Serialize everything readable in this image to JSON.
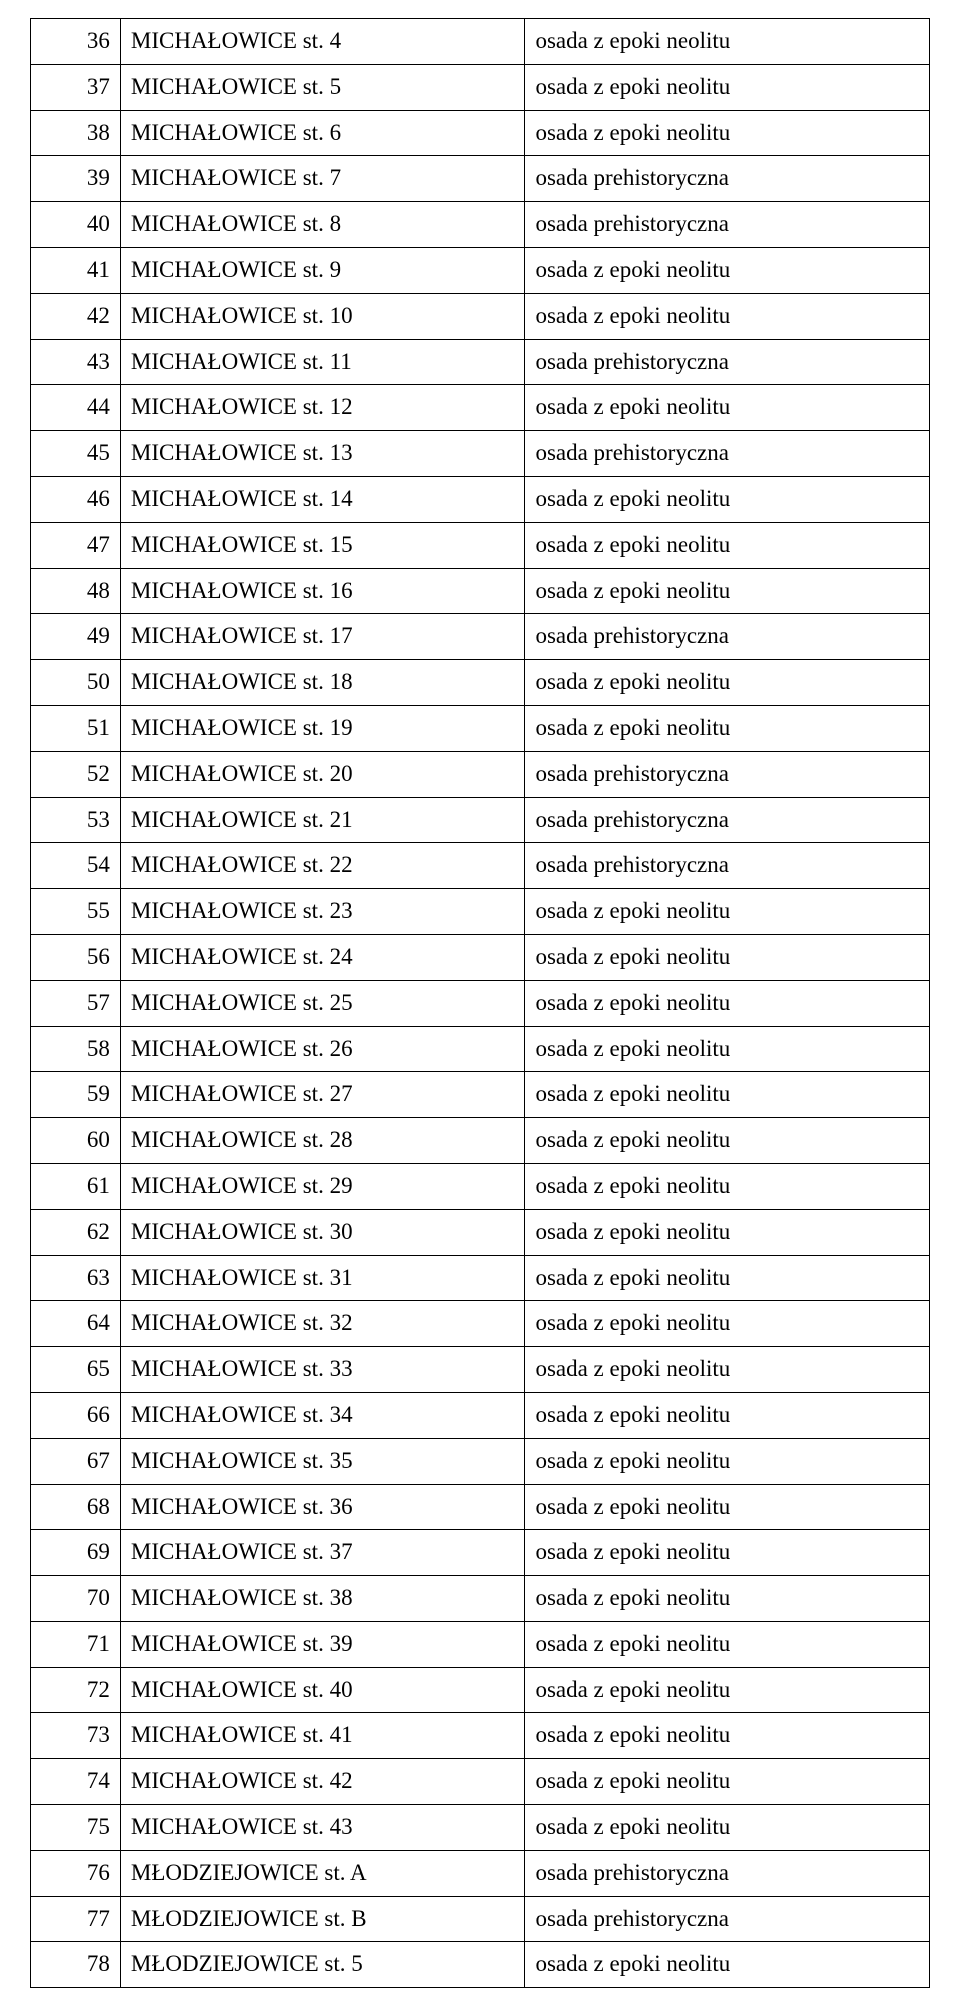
{
  "table": {
    "columns": [
      "num",
      "name",
      "desc"
    ],
    "col_widths_pct": [
      10,
      45,
      45
    ],
    "border_color": "#000000",
    "background_color": "#ffffff",
    "font_family": "Times New Roman",
    "font_size_pt": 17,
    "text_color": "#000000",
    "rows": [
      {
        "num": "36",
        "name": "MICHAŁOWICE st. 4",
        "desc": "osada z epoki neolitu"
      },
      {
        "num": "37",
        "name": "MICHAŁOWICE st. 5",
        "desc": "osada z epoki neolitu"
      },
      {
        "num": "38",
        "name": "MICHAŁOWICE st. 6",
        "desc": "osada z epoki neolitu"
      },
      {
        "num": "39",
        "name": "MICHAŁOWICE st. 7",
        "desc": "osada prehistoryczna"
      },
      {
        "num": "40",
        "name": "MICHAŁOWICE st. 8",
        "desc": "osada prehistoryczna"
      },
      {
        "num": "41",
        "name": "MICHAŁOWICE st. 9",
        "desc": "osada z epoki neolitu"
      },
      {
        "num": "42",
        "name": "MICHAŁOWICE st. 10",
        "desc": "osada z epoki neolitu"
      },
      {
        "num": "43",
        "name": "MICHAŁOWICE st. 11",
        "desc": "osada prehistoryczna"
      },
      {
        "num": "44",
        "name": "MICHAŁOWICE st. 12",
        "desc": "osada z epoki neolitu"
      },
      {
        "num": "45",
        "name": "MICHAŁOWICE st. 13",
        "desc": "osada prehistoryczna"
      },
      {
        "num": "46",
        "name": "MICHAŁOWICE st. 14",
        "desc": "osada z epoki neolitu"
      },
      {
        "num": "47",
        "name": "MICHAŁOWICE st. 15",
        "desc": "osada z epoki neolitu"
      },
      {
        "num": "48",
        "name": "MICHAŁOWICE st. 16",
        "desc": "osada z epoki neolitu"
      },
      {
        "num": "49",
        "name": "MICHAŁOWICE st. 17",
        "desc": "osada prehistoryczna"
      },
      {
        "num": "50",
        "name": "MICHAŁOWICE st. 18",
        "desc": "osada z epoki neolitu"
      },
      {
        "num": "51",
        "name": "MICHAŁOWICE st. 19",
        "desc": "osada z epoki neolitu"
      },
      {
        "num": "52",
        "name": "MICHAŁOWICE st. 20",
        "desc": "osada prehistoryczna"
      },
      {
        "num": "53",
        "name": "MICHAŁOWICE st. 21",
        "desc": "osada prehistoryczna"
      },
      {
        "num": "54",
        "name": "MICHAŁOWICE st. 22",
        "desc": "osada prehistoryczna"
      },
      {
        "num": "55",
        "name": "MICHAŁOWICE st. 23",
        "desc": "osada z epoki neolitu"
      },
      {
        "num": "56",
        "name": "MICHAŁOWICE st. 24",
        "desc": "osada z epoki neolitu"
      },
      {
        "num": "57",
        "name": "MICHAŁOWICE st. 25",
        "desc": "osada z epoki neolitu"
      },
      {
        "num": "58",
        "name": "MICHAŁOWICE st. 26",
        "desc": "osada z epoki neolitu"
      },
      {
        "num": "59",
        "name": "MICHAŁOWICE st. 27",
        "desc": "osada z epoki neolitu"
      },
      {
        "num": "60",
        "name": "MICHAŁOWICE st. 28",
        "desc": "osada z epoki neolitu"
      },
      {
        "num": "61",
        "name": "MICHAŁOWICE st. 29",
        "desc": "osada z epoki neolitu"
      },
      {
        "num": "62",
        "name": "MICHAŁOWICE st. 30",
        "desc": "osada z epoki neolitu"
      },
      {
        "num": "63",
        "name": "MICHAŁOWICE st. 31",
        "desc": "osada z epoki neolitu"
      },
      {
        "num": "64",
        "name": "MICHAŁOWICE st. 32",
        "desc": "osada z epoki neolitu"
      },
      {
        "num": "65",
        "name": "MICHAŁOWICE st. 33",
        "desc": "osada z epoki neolitu"
      },
      {
        "num": "66",
        "name": "MICHAŁOWICE st. 34",
        "desc": "osada z epoki neolitu"
      },
      {
        "num": "67",
        "name": "MICHAŁOWICE st. 35",
        "desc": "osada z epoki neolitu"
      },
      {
        "num": "68",
        "name": "MICHAŁOWICE st. 36",
        "desc": "osada z epoki neolitu"
      },
      {
        "num": "69",
        "name": "MICHAŁOWICE st. 37",
        "desc": "osada z epoki neolitu"
      },
      {
        "num": "70",
        "name": "MICHAŁOWICE st. 38",
        "desc": "osada z epoki neolitu"
      },
      {
        "num": "71",
        "name": "MICHAŁOWICE st. 39",
        "desc": "osada z epoki neolitu"
      },
      {
        "num": "72",
        "name": "MICHAŁOWICE st. 40",
        "desc": "osada z epoki neolitu"
      },
      {
        "num": "73",
        "name": "MICHAŁOWICE st. 41",
        "desc": "osada z epoki neolitu"
      },
      {
        "num": "74",
        "name": "MICHAŁOWICE st. 42",
        "desc": "osada z epoki neolitu"
      },
      {
        "num": "75",
        "name": "MICHAŁOWICE st. 43",
        "desc": "osada z epoki neolitu"
      },
      {
        "num": "76",
        "name": "MŁODZIEJOWICE st. A",
        "desc": "osada prehistoryczna"
      },
      {
        "num": "77",
        "name": "MŁODZIEJOWICE st. B",
        "desc": "osada prehistoryczna"
      },
      {
        "num": "78",
        "name": "MŁODZIEJOWICE st. 5",
        "desc": "osada z epoki neolitu"
      }
    ]
  }
}
